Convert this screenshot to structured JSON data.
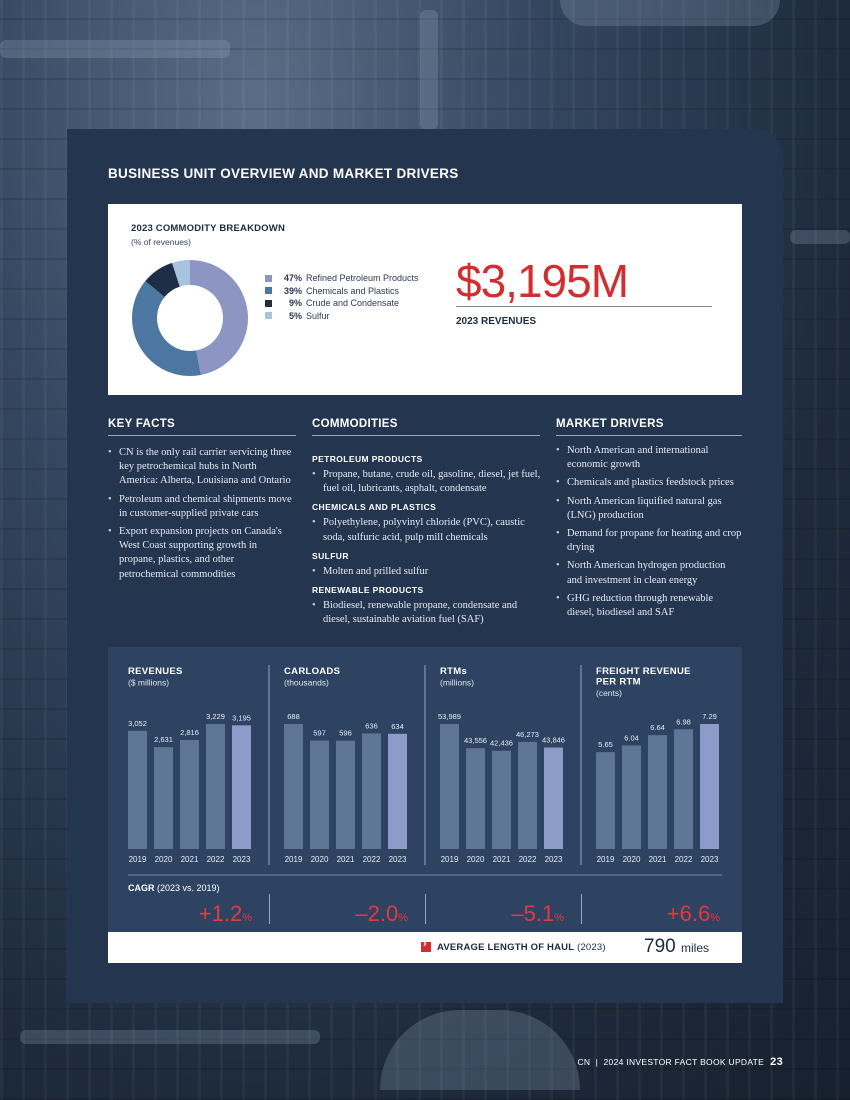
{
  "page": {
    "title": "BUSINESS UNIT OVERVIEW AND MARKET DRIVERS",
    "footer_brand": "CN",
    "footer_doc": "2024 INVESTOR FACT BOOK UPDATE",
    "page_number": "23"
  },
  "breakdown": {
    "title": "2023 COMMODITY BREAKDOWN",
    "subtitle": "(% of revenues)",
    "items": [
      {
        "pct": "47%",
        "label": "Refined Petroleum Products",
        "value": 47,
        "color": "#8d96c2"
      },
      {
        "pct": "39%",
        "label": "Chemicals and Plastics",
        "value": 39,
        "color": "#4d77a3"
      },
      {
        "pct": "9%",
        "label": "Crude and Condensate",
        "value": 9,
        "color": "#1e2e47"
      },
      {
        "pct": "5%",
        "label": "Sulfur",
        "value": 5,
        "color": "#a7c3df"
      }
    ],
    "revenue": "$3,195M",
    "revenue_label": "2023 REVENUES"
  },
  "key_facts": {
    "heading": "KEY FACTS",
    "items": [
      "CN is the only rail carrier servicing three key petrochemical hubs in North America: Alberta, Louisiana and Ontario",
      "Petroleum and chemical shipments move in customer-supplied private cars",
      "Export expansion projects on Canada's West Coast supporting growth in propane, plastics, and other petrochemical commodities"
    ]
  },
  "commodities": {
    "heading": "COMMODITIES",
    "groups": [
      {
        "title": "PETROLEUM PRODUCTS",
        "text": "Propane, butane, crude oil, gasoline, diesel, jet fuel, fuel oil, lubricants, asphalt, condensate"
      },
      {
        "title": "CHEMICALS AND PLASTICS",
        "text": "Polyethylene, polyvinyl chloride (PVC), caustic soda, sulfuric acid, pulp mill chemicals"
      },
      {
        "title": "SULFUR",
        "text": "Molten and prilled sulfur"
      },
      {
        "title": "RENEWABLE PRODUCTS",
        "text": "Biodiesel, renewable propane, condensate and diesel, sustainable aviation fuel (SAF)"
      }
    ]
  },
  "market_drivers": {
    "heading": "MARKET DRIVERS",
    "items": [
      "North American and international economic growth",
      "Chemicals and plastics feedstock prices",
      "North American liquified natural gas (LNG) production",
      "Demand for propane for heating and crop drying",
      "North American hydrogen production and investment in clean energy",
      "GHG reduction through renewable diesel, biodiesel and SAF"
    ]
  },
  "chart_data": [
    {
      "type": "bar",
      "title": "REVENUES",
      "subtitle": "($ millions)",
      "categories": [
        "2019",
        "2020",
        "2021",
        "2022",
        "2023"
      ],
      "values": [
        3052,
        2631,
        2816,
        3229,
        3195
      ],
      "labels": [
        "3,052",
        "2,631",
        "2,816",
        "3,229",
        "3,195"
      ]
    },
    {
      "type": "bar",
      "title": "CARLOADS",
      "subtitle": "(thousands)",
      "categories": [
        "2019",
        "2020",
        "2021",
        "2022",
        "2023"
      ],
      "values": [
        688,
        597,
        596,
        636,
        634
      ],
      "labels": [
        "688",
        "597",
        "596",
        "636",
        "634"
      ]
    },
    {
      "type": "bar",
      "title": "RTMs",
      "subtitle": "(millions)",
      "categories": [
        "2019",
        "2020",
        "2021",
        "2022",
        "2023"
      ],
      "values": [
        53989,
        43556,
        42436,
        46273,
        43846
      ],
      "labels": [
        "53,989",
        "43,556",
        "42,436",
        "46,273",
        "43,846"
      ]
    },
    {
      "type": "bar",
      "title": "FREIGHT REVENUE PER RTM",
      "subtitle": "(cents)",
      "categories": [
        "2019",
        "2020",
        "2021",
        "2022",
        "2023"
      ],
      "values": [
        5.65,
        6.04,
        6.64,
        6.98,
        7.29
      ],
      "labels": [
        "5.65",
        "6.04",
        "6.64",
        "6.98",
        "7.29"
      ]
    }
  ],
  "cagr": {
    "label": "CAGR",
    "period": "(2023 vs. 2019)",
    "values": [
      "+1.2",
      "–2.0",
      "–5.1",
      "+6.6"
    ],
    "unit": "%"
  },
  "haul": {
    "label": "AVERAGE LENGTH OF HAUL",
    "year": "(2023)",
    "value": "790",
    "unit": "miles"
  },
  "colors": {
    "bar": "#5f7596",
    "bar_latest": "#8d9bc8",
    "accent": "#d42d2f"
  }
}
